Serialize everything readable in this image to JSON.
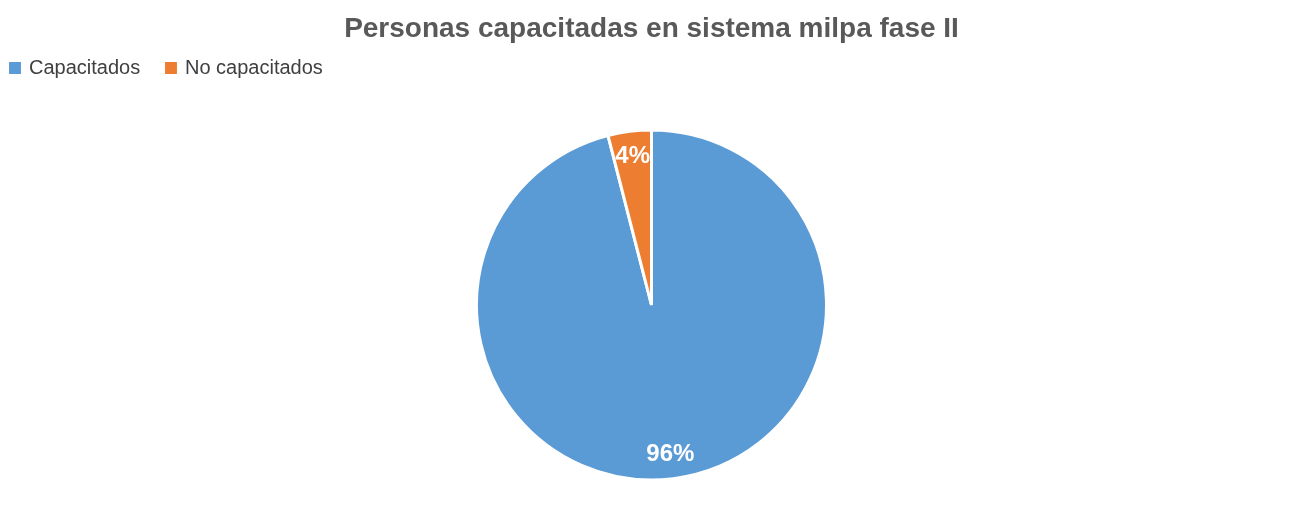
{
  "chart_data": {
    "type": "pie",
    "title": "Personas capacitadas en sistema milpa fase II",
    "categories": [
      "Capacitados",
      "No capacitados"
    ],
    "values": [
      96,
      4
    ],
    "colors": [
      "#5b9bd5",
      "#ed7d31"
    ],
    "value_labels": [
      "96%",
      "4%"
    ],
    "legend": "top"
  }
}
